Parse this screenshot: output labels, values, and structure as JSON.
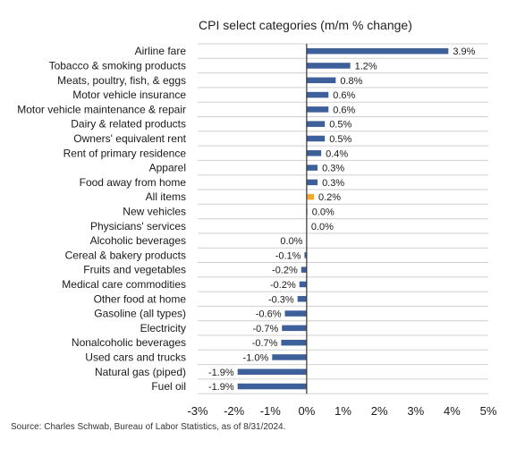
{
  "chart_data": {
    "type": "bar",
    "orientation": "horizontal",
    "title": "CPI select categories (m/m % change)",
    "xlabel": "",
    "ylabel": "",
    "xlim": [
      -3,
      5
    ],
    "xticks": [
      -3,
      -2,
      -1,
      0,
      1,
      2,
      3,
      4,
      5
    ],
    "xtick_labels": [
      "-3%",
      "-2%",
      "-1%",
      "0%",
      "1%",
      "2%",
      "3%",
      "4%",
      "5%"
    ],
    "grid": "horizontal row lines",
    "categories": [
      "Airline fare",
      "Tobacco & smoking products",
      "Meats, poultry, fish, & eggs",
      "Motor vehicle insurance",
      "Motor vehicle maintenance & repair",
      "Dairy & related products",
      "Owners' equivalent rent",
      "Rent of primary residence",
      "Apparel",
      "Food away from home",
      "All items",
      "New vehicles",
      "Physicians' services",
      "Alcoholic beverages",
      "Cereal & bakery products",
      "Fruits and vegetables",
      "Medical care commodities",
      "Other food at home",
      "Gasoline (all types)",
      "Electricity",
      "Nonalcoholic beverages",
      "Used cars and trucks",
      "Natural gas (piped)",
      "Fuel oil"
    ],
    "values": [
      3.9,
      1.2,
      0.8,
      0.6,
      0.6,
      0.5,
      0.5,
      0.4,
      0.3,
      0.3,
      0.2,
      0.02,
      0.0,
      -0.01,
      -0.06,
      -0.15,
      -0.2,
      -0.25,
      -0.6,
      -0.68,
      -0.7,
      -0.95,
      -1.9,
      -1.9
    ],
    "value_labels": [
      "3.9%",
      "1.2%",
      "0.8%",
      "0.6%",
      "0.6%",
      "0.5%",
      "0.5%",
      "0.4%",
      "0.3%",
      "0.3%",
      "0.2%",
      "0.0%",
      "0.0%",
      "0.0%",
      "-0.1%",
      "-0.2%",
      "-0.2%",
      "-0.3%",
      "-0.6%",
      "-0.7%",
      "-0.7%",
      "-1.0%",
      "-1.9%",
      "-1.9%"
    ],
    "highlight_category": "All items",
    "colors": {
      "bar": "#3d5f9a",
      "highlight": "#f0a830",
      "axis": "#333333",
      "grid": "#d0d0d0"
    }
  },
  "source": "Source: Charles Schwab, Bureau of Labor Statistics, as of 8/31/2024."
}
